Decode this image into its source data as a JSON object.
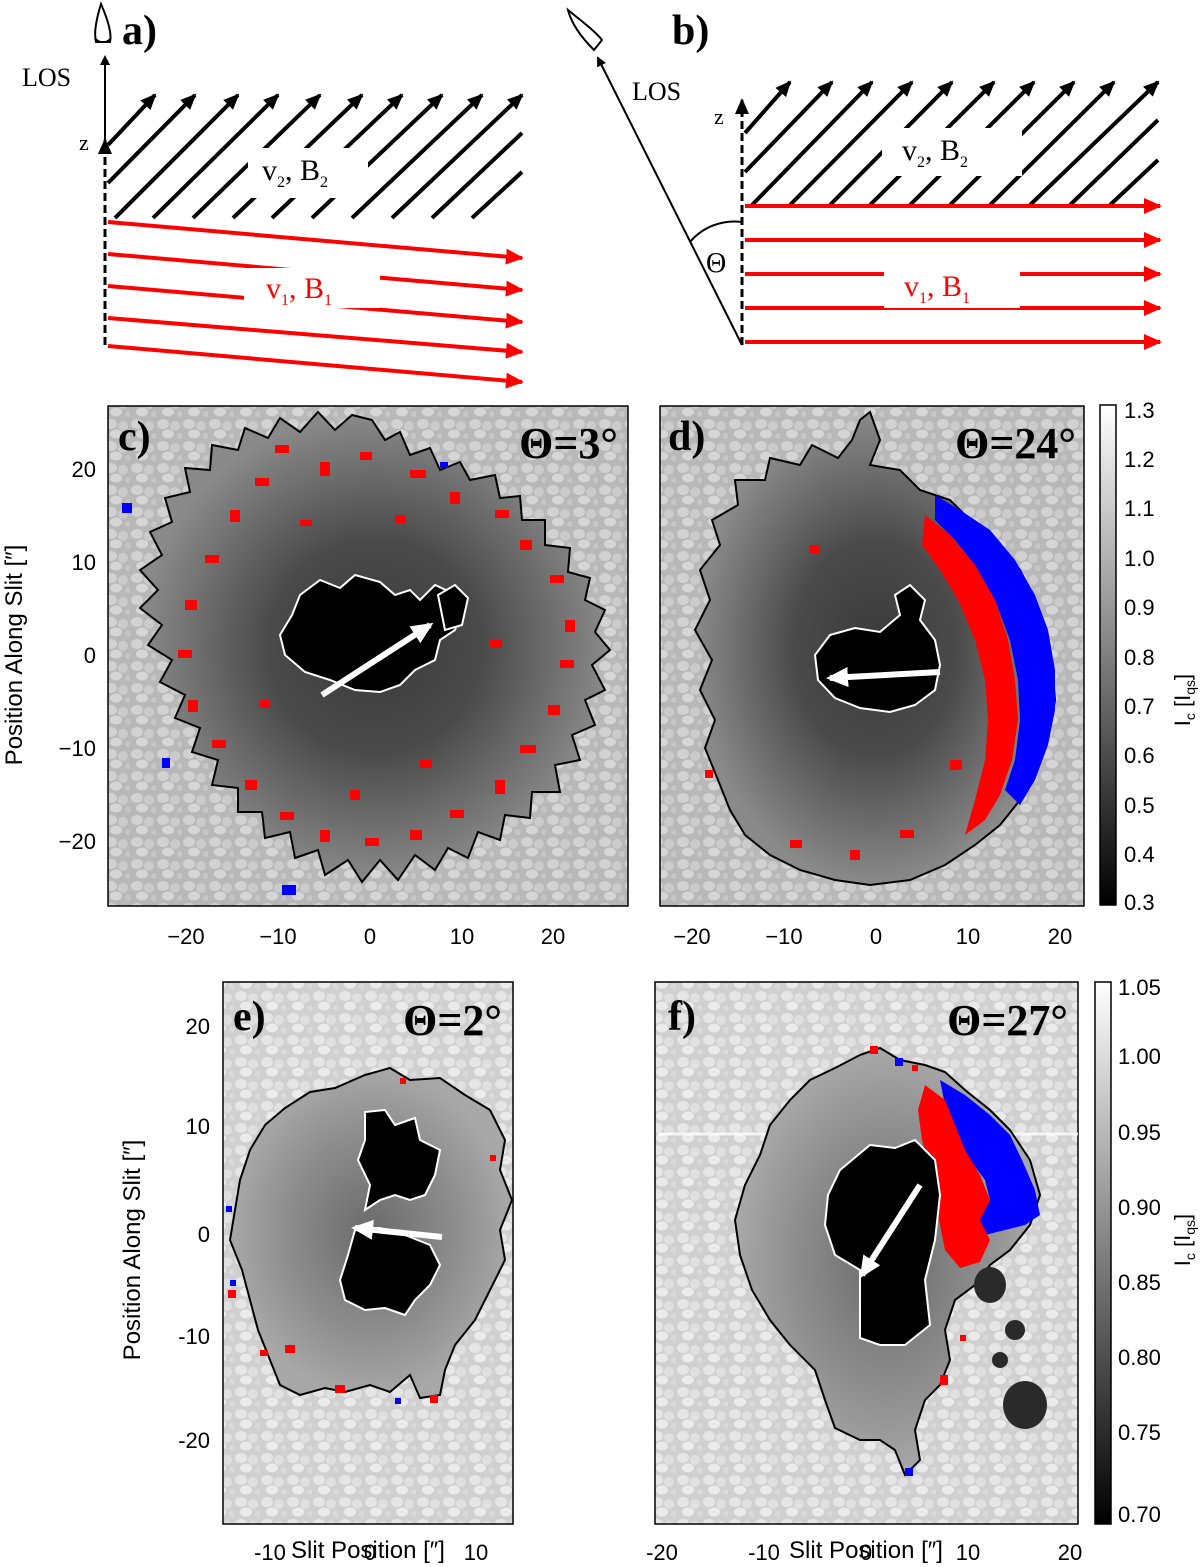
{
  "panels": {
    "a": {
      "letter": "a)",
      "los": "LOS",
      "z": "z",
      "upper_v": "v",
      "upper_v_sub": "2",
      "upper_b": ", B",
      "upper_b_sub": "2",
      "lower_v": "v",
      "lower_v_sub": "1",
      "lower_b": ", B",
      "lower_b_sub": "1"
    },
    "b": {
      "letter": "b)",
      "los": "LOS",
      "z": "z",
      "theta": "Θ",
      "upper_v": "v",
      "upper_v_sub": "2",
      "upper_b": ", B",
      "upper_b_sub": "2",
      "lower_v": "v",
      "lower_v_sub": "1",
      "lower_b": ", B",
      "lower_b_sub": "1"
    },
    "c": {
      "letter": "c)",
      "theta_label": "Θ=3°",
      "x_ticks": [
        "−20",
        "−10",
        "0",
        "10",
        "20"
      ],
      "y_ticks": [
        "20",
        "10",
        "0",
        "−10",
        "−20"
      ]
    },
    "d": {
      "letter": "d)",
      "theta_label": "Θ=24°",
      "x_ticks": [
        "−20",
        "−10",
        "0",
        "10",
        "20"
      ]
    },
    "e": {
      "letter": "e)",
      "theta_label": "Θ=2°",
      "x_ticks": [
        "-10",
        "0",
        "10"
      ],
      "y_ticks": [
        "20",
        "10",
        "0",
        "-10",
        "-20"
      ]
    },
    "f": {
      "letter": "f)",
      "theta_label": "Θ=27°",
      "x_ticks": [
        "-20",
        "-10",
        "0",
        "10",
        "20"
      ]
    }
  },
  "axes": {
    "ylabel": "Position Along Slit [″]",
    "xlabel": "Slit Position [″]"
  },
  "colorbar_top": {
    "label_main": "I",
    "label_sub": "c",
    "label_tail": " [I",
    "label_sub2": "qs",
    "label_end": "]",
    "ticks": [
      "1.3",
      "1.2",
      "1.1",
      "1.0",
      "0.9",
      "0.8",
      "0.7",
      "0.6",
      "0.5",
      "0.4",
      "0.3"
    ]
  },
  "colorbar_bottom": {
    "label_main": "I",
    "label_sub": "c",
    "label_tail": " [I",
    "label_sub2": "qs",
    "label_end": "]",
    "ticks": [
      "1.05",
      "1.00",
      "0.95",
      "0.90",
      "0.85",
      "0.80",
      "0.75",
      "0.70"
    ]
  },
  "colors": {
    "red": "#ff0000",
    "blue": "#0000ff",
    "black": "#000000"
  }
}
